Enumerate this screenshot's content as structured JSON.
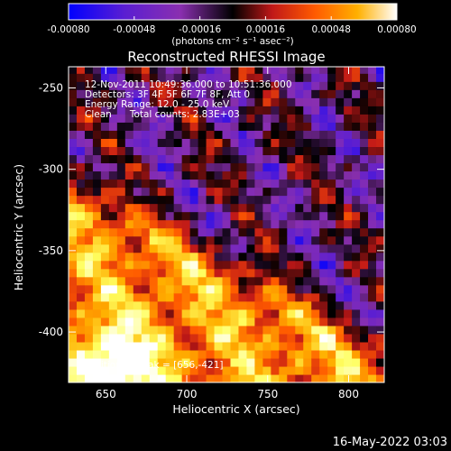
{
  "colorbar": {
    "ticks": [
      "-0.00080",
      "-0.00048",
      "-0.00016",
      "0.00016",
      "0.00048",
      "0.00080"
    ],
    "units": "(photons cm⁻² s⁻¹ asec⁻²)"
  },
  "footer": {
    "timestamp": "16-May-2022 03:03"
  },
  "chart_data": {
    "type": "heatmap",
    "title": "Reconstructed RHESSI Image",
    "xlabel": "Heliocentric X (arcsec)",
    "ylabel": "Heliocentric Y (arcsec)",
    "xlim": [
      627,
      822
    ],
    "ylim": [
      -431,
      -237
    ],
    "zlim": [
      -0.0008,
      0.0008
    ],
    "x_ticks": [
      650,
      700,
      750,
      800
    ],
    "y_ticks": [
      -250,
      -300,
      -350,
      -400
    ],
    "colormap": [
      "#0000ff",
      "#5a1ed2",
      "#8a2fb0",
      "#000000",
      "#c01818",
      "#ff5a00",
      "#ffb000",
      "#ffff60",
      "#ffffff"
    ],
    "annotations": [
      "12-Nov-2011 10:49:36.000 to 10:51:36.000",
      "Detectors: 3F 4F 5F 6F 7F 8F, Att 0",
      "Energy Range: 12.0 - 25.0 keV",
      "Clean      Total counts: 2.83E+03"
    ],
    "peak_label": "Position of Peak = [656,-421]",
    "peak": [
      656,
      -421
    ]
  }
}
